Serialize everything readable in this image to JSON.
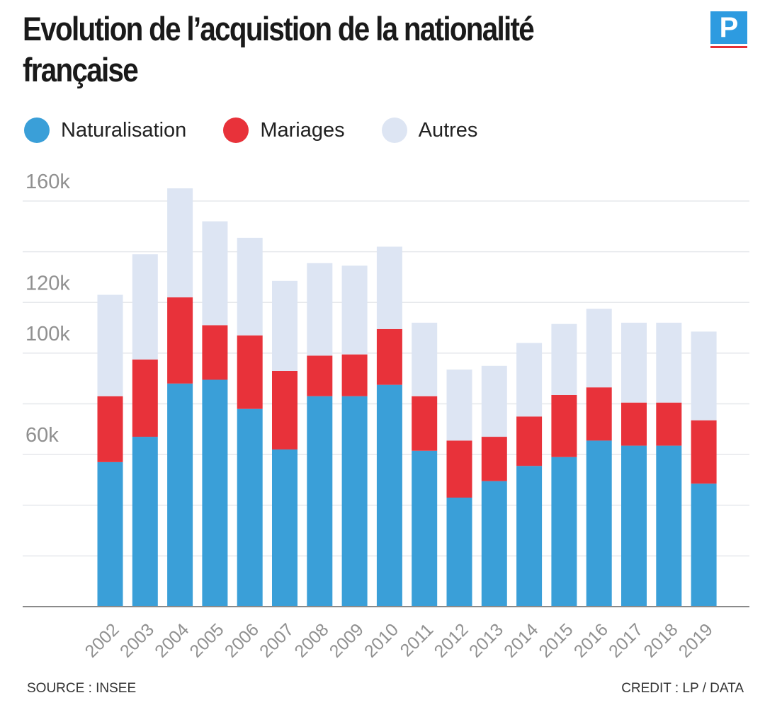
{
  "header": {
    "title": "Evolution de l’acquistion de la nationalité française",
    "logo_letter": "P"
  },
  "legend": [
    {
      "label": "Naturalisation",
      "color": "#3a9fd8"
    },
    {
      "label": "Mariages",
      "color": "#e8323a"
    },
    {
      "label": "Autres",
      "color": "#dde5f3"
    }
  ],
  "footer": {
    "source": "SOURCE : INSEE",
    "credit": "CREDIT : LP / DATA"
  },
  "chart_data": {
    "type": "bar",
    "stacked": true,
    "title": "Evolution de l’acquistion de la nationalité française",
    "categories": [
      "2002",
      "2003",
      "2004",
      "2005",
      "2006",
      "2007",
      "2008",
      "2009",
      "2010",
      "2011",
      "2012",
      "2013",
      "2014",
      "2015",
      "2016",
      "2017",
      "2018",
      "2019"
    ],
    "series": [
      {
        "name": "Naturalisation",
        "color": "#3a9fd8",
        "values": [
          57000,
          67000,
          88000,
          89500,
          78000,
          62000,
          83000,
          83000,
          87500,
          61500,
          43000,
          49500,
          55500,
          59000,
          65500,
          63500,
          63500,
          48500
        ]
      },
      {
        "name": "Mariages",
        "color": "#e8323a",
        "values": [
          26000,
          30500,
          34000,
          21500,
          29000,
          31000,
          16000,
          16500,
          22000,
          21500,
          22500,
          17500,
          19500,
          24500,
          21000,
          17000,
          17000,
          25000
        ]
      },
      {
        "name": "Autres",
        "color": "#dde5f3",
        "values": [
          40000,
          41500,
          43000,
          41000,
          38500,
          35500,
          36500,
          35000,
          32500,
          29000,
          28000,
          28000,
          29000,
          28000,
          31000,
          31500,
          31500,
          35000
        ]
      }
    ],
    "ylim": [
      0,
      160000
    ],
    "yticks": [
      {
        "value": 60000,
        "label": "60k"
      },
      {
        "value": 100000,
        "label": "100k"
      },
      {
        "value": 120000,
        "label": "120k"
      },
      {
        "value": 160000,
        "label": "160k"
      }
    ],
    "gridlines": [
      20000,
      40000,
      60000,
      80000,
      100000,
      120000,
      140000,
      160000
    ],
    "grid": true,
    "legend_position": "top-left",
    "colors": {
      "grid": "#e6e8ec",
      "axis": "#8a8a8a",
      "tick_label": "#909090"
    }
  }
}
